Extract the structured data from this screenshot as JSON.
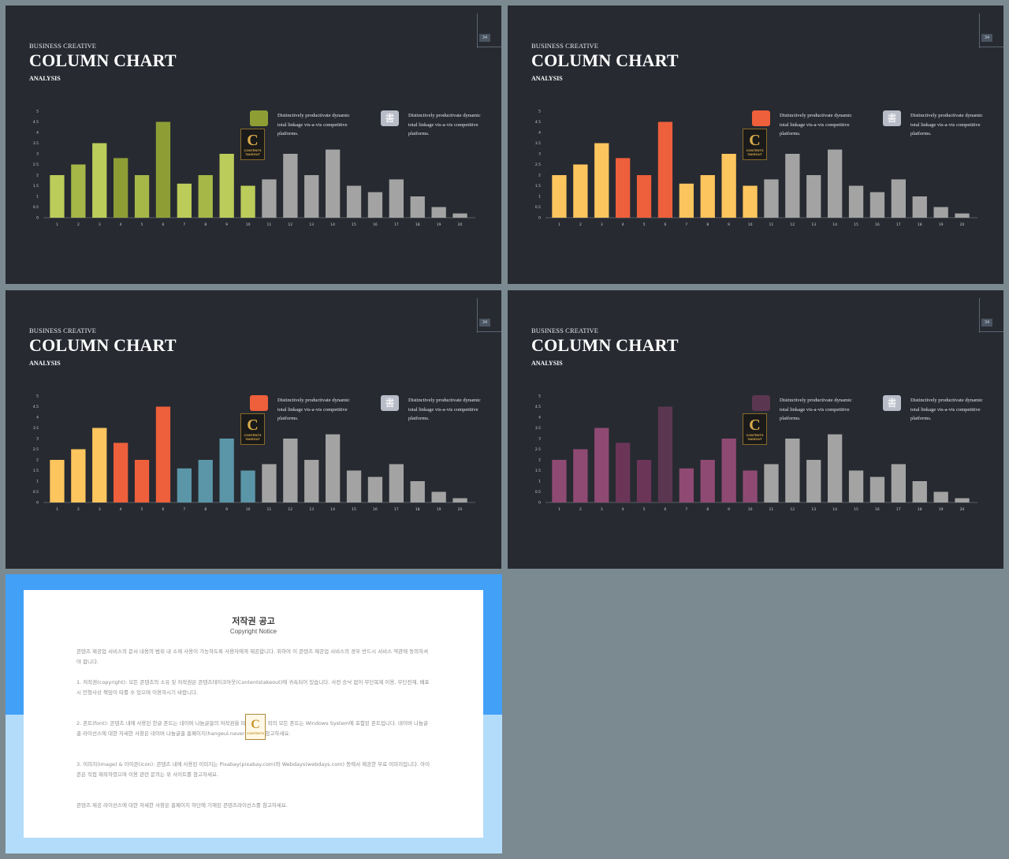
{
  "slides": [
    {
      "kicker": "BUSINESS CREATIVE",
      "title": "COLUMN CHART",
      "subtitle": "ANALYSIS",
      "page_number": "34",
      "legend": [
        {
          "text": "Distinctively productivate dynamic total linkage vis-a-vis competitive platforms.",
          "color": "#8e9e35"
        },
        {
          "text": "Distinctively productivate dynamic total linkage vis-a-vis competitive platforms.",
          "color": "#b7bcc7",
          "icon": "書"
        }
      ],
      "logo": {
        "letter": "C",
        "line1": "CONTENTS",
        "line2": "TAKEOUT"
      }
    },
    {
      "kicker": "BUSINESS CREATIVE",
      "title": "COLUMN CHART",
      "subtitle": "ANALYSIS",
      "page_number": "34",
      "legend": [
        {
          "text": "Distinctively productivate dynamic total linkage vis-a-vis competitive platforms.",
          "color": "#ee5f3b"
        },
        {
          "text": "Distinctively productivate dynamic total linkage vis-a-vis competitive platforms.",
          "color": "#b7bcc7",
          "icon": "書"
        }
      ],
      "logo": {
        "letter": "C",
        "line1": "CONTENTS",
        "line2": "TAKEOUT"
      }
    },
    {
      "kicker": "BUSINESS CREATIVE",
      "title": "COLUMN CHART",
      "subtitle": "ANALYSIS",
      "page_number": "34",
      "legend": [
        {
          "text": "Distinctively productivate dynamic total linkage vis-a-vis competitive platforms.",
          "color": "#ee5f3b"
        },
        {
          "text": "Distinctively productivate dynamic total linkage vis-a-vis competitive platforms.",
          "color": "#b7bcc7",
          "icon": "書"
        }
      ],
      "logo": {
        "letter": "C",
        "line1": "CONTENTS",
        "line2": "TAKEOUT"
      }
    },
    {
      "kicker": "BUSINESS CREATIVE",
      "title": "COLUMN CHART",
      "subtitle": "ANALYSIS",
      "page_number": "34",
      "legend": [
        {
          "text": "Distinctively productivate dynamic total linkage vis-a-vis competitive platforms.",
          "color": "#5b3650"
        },
        {
          "text": "Distinctively productivate dynamic total linkage vis-a-vis competitive platforms.",
          "color": "#b7bcc7",
          "icon": "書"
        }
      ],
      "logo": {
        "letter": "C",
        "line1": "CONTENTS",
        "line2": "TAKEOUT"
      }
    }
  ],
  "chart_data": [
    {
      "type": "bar",
      "title": "",
      "xlabel": "",
      "ylabel": "",
      "ylim": [
        0,
        5
      ],
      "yticks": [
        "0",
        "0.5",
        "1",
        "1.5",
        "2",
        "2.5",
        "3",
        "3.5",
        "4",
        "4.5",
        "5"
      ],
      "categories": [
        "1",
        "2",
        "3",
        "4",
        "5",
        "6",
        "7",
        "8",
        "9",
        "10",
        "11",
        "12",
        "13",
        "14",
        "15",
        "16",
        "17",
        "18",
        "19",
        "20"
      ],
      "values": [
        2,
        2.5,
        3.5,
        2.8,
        2,
        4.5,
        1.6,
        2,
        3,
        1.5,
        1.8,
        3,
        2,
        3.2,
        1.5,
        1.2,
        1.8,
        1,
        0.5,
        0.2
      ],
      "colors": [
        "#bccc5a",
        "#a6b748",
        "#bccc5a",
        "#8e9e35",
        "#a6b748",
        "#8e9e35",
        "#bccc5a",
        "#a6b748",
        "#bccc5a",
        "#bccc5a",
        "#a3a3a3",
        "#a3a3a3",
        "#a3a3a3",
        "#a3a3a3",
        "#a3a3a3",
        "#a3a3a3",
        "#a3a3a3",
        "#a3a3a3",
        "#a3a3a3",
        "#a3a3a3"
      ],
      "grid": false,
      "legend": "top-right"
    },
    {
      "type": "bar",
      "title": "",
      "xlabel": "",
      "ylabel": "",
      "ylim": [
        0,
        5
      ],
      "yticks": [
        "0",
        "0.5",
        "1",
        "1.5",
        "2",
        "2.5",
        "3",
        "3.5",
        "4",
        "4.5",
        "5"
      ],
      "categories": [
        "1",
        "2",
        "3",
        "4",
        "5",
        "6",
        "7",
        "8",
        "9",
        "10",
        "11",
        "12",
        "13",
        "14",
        "15",
        "16",
        "17",
        "18",
        "19",
        "20"
      ],
      "values": [
        2,
        2.5,
        3.5,
        2.8,
        2,
        4.5,
        1.6,
        2,
        3,
        1.5,
        1.8,
        3,
        2,
        3.2,
        1.5,
        1.2,
        1.8,
        1,
        0.5,
        0.2
      ],
      "colors": [
        "#fdc55d",
        "#fdc55d",
        "#fdc55d",
        "#ee5f3b",
        "#ee5f3b",
        "#ee5f3b",
        "#fdc55d",
        "#fdc55d",
        "#fdc55d",
        "#fdc55d",
        "#a3a3a3",
        "#a3a3a3",
        "#a3a3a3",
        "#a3a3a3",
        "#a3a3a3",
        "#a3a3a3",
        "#a3a3a3",
        "#a3a3a3",
        "#a3a3a3",
        "#a3a3a3"
      ],
      "grid": false,
      "legend": "top-right"
    },
    {
      "type": "bar",
      "title": "",
      "xlabel": "",
      "ylabel": "",
      "ylim": [
        0,
        5
      ],
      "yticks": [
        "0",
        "0.5",
        "1",
        "1.5",
        "2",
        "2.5",
        "3",
        "3.5",
        "4",
        "4.5",
        "5"
      ],
      "categories": [
        "1",
        "2",
        "3",
        "4",
        "5",
        "6",
        "7",
        "8",
        "9",
        "10",
        "11",
        "12",
        "13",
        "14",
        "15",
        "16",
        "17",
        "18",
        "19",
        "20"
      ],
      "values": [
        2,
        2.5,
        3.5,
        2.8,
        2,
        4.5,
        1.6,
        2,
        3,
        1.5,
        1.8,
        3,
        2,
        3.2,
        1.5,
        1.2,
        1.8,
        1,
        0.5,
        0.2
      ],
      "colors": [
        "#fdc55d",
        "#fdc55d",
        "#fdc55d",
        "#ee5f3b",
        "#ee5f3b",
        "#ee5f3b",
        "#5b96a8",
        "#5b96a8",
        "#5b96a8",
        "#5b96a8",
        "#a3a3a3",
        "#a3a3a3",
        "#a3a3a3",
        "#a3a3a3",
        "#a3a3a3",
        "#a3a3a3",
        "#a3a3a3",
        "#a3a3a3",
        "#a3a3a3",
        "#a3a3a3"
      ],
      "grid": false,
      "legend": "top-right"
    },
    {
      "type": "bar",
      "title": "",
      "xlabel": "",
      "ylabel": "",
      "ylim": [
        0,
        5
      ],
      "yticks": [
        "0",
        "0.5",
        "1",
        "1.5",
        "2",
        "2.5",
        "3",
        "3.5",
        "4",
        "4.5",
        "5"
      ],
      "categories": [
        "1",
        "2",
        "3",
        "4",
        "5",
        "6",
        "7",
        "8",
        "9",
        "10",
        "11",
        "12",
        "13",
        "14",
        "15",
        "16",
        "17",
        "18",
        "19",
        "20"
      ],
      "values": [
        2,
        2.5,
        3.5,
        2.8,
        2,
        4.5,
        1.6,
        2,
        3,
        1.5,
        1.8,
        3,
        2,
        3.2,
        1.5,
        1.2,
        1.8,
        1,
        0.5,
        0.2
      ],
      "colors": [
        "#8f4a73",
        "#8f4a73",
        "#8f4a73",
        "#6b3558",
        "#6b3558",
        "#5b3650",
        "#8f4a73",
        "#8f4a73",
        "#8f4a73",
        "#8f4a73",
        "#a3a3a3",
        "#a3a3a3",
        "#a3a3a3",
        "#a3a3a3",
        "#a3a3a3",
        "#a3a3a3",
        "#a3a3a3",
        "#a3a3a3",
        "#a3a3a3",
        "#a3a3a3"
      ],
      "grid": false,
      "legend": "top-right"
    }
  ],
  "notice": {
    "title": "저작권 공고",
    "subtitle": "Copyright Notice",
    "paragraphs": [
      "콘텐츠 제공업 서비스의 문서 내용의 범위 내 소재 사용이 가능하도록 사용자에게 제공합니다. 위하여 이 콘텐츠 제공업 서비스의 경우 반드시 서비스 약관에 동의하셔야 합니다.",
      "1. 저작권(copyright): 모든 콘텐츠의 소유 및 저작권은 콘텐츠테이크아웃(Contentstakeout)에 귀속되어 있습니다. 사전 승낙 없이 무단복제 이용, 무단전재, 배포 시 민형사상 책임이 따를 수 있으며 이용하시기 바랍니다.",
      "2. 폰트(font): 콘텐츠 내에 사용된 한글 폰트는 네이버 나눔글꼴의 저작권을 따르며 한글 외의 모든 폰트는 Windows System에 포함된 폰트입니다. 네이버 나눔글꼴 라이선스에 대한 자세한 사항은 네이버 나눔글꼴 홈페이지(hangeul.naver.com)를 참고하세요.",
      "3. 이미지(image) & 아이콘(icon): 콘텐츠 내에 사용된 이미지는 Pixabay(pixabay.com)와 Webdays(webdays.com) 등에서 제공한 무료 이미지입니다. 아이콘은 직접 제작하였으며 이용 관련 문의는 위 사이트를 참고하세요.",
      "콘텐츠 제공 라이선스에 대한 자세한 사항은 홈페이지 하단에 기재된 콘텐츠라이선스를 참고하세요."
    ],
    "logo": {
      "letter": "C",
      "line1": "CONTENTS",
      "line2": "TAKEOUT"
    }
  }
}
